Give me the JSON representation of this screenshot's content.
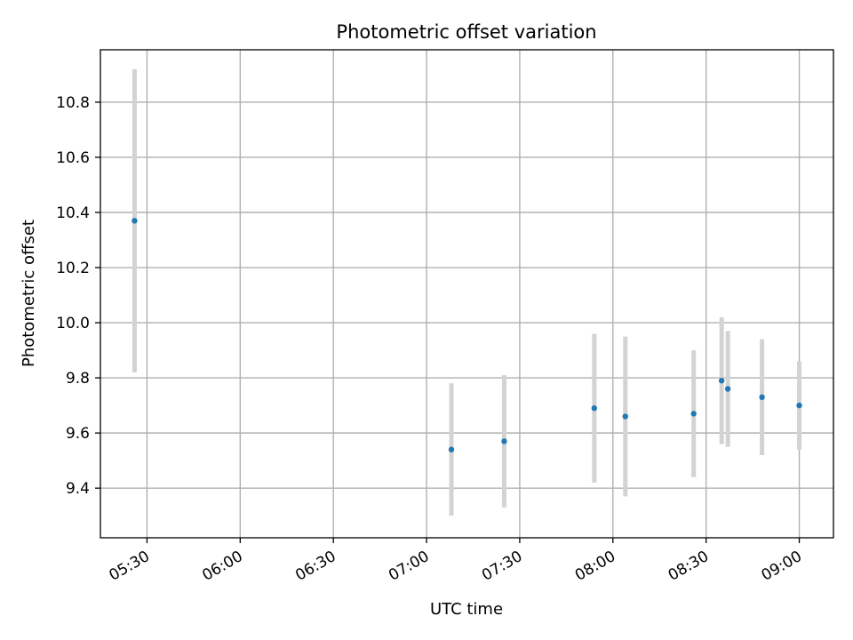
{
  "chart_data": {
    "type": "scatter",
    "title": "Photometric offset variation",
    "xlabel": "UTC time",
    "ylabel": "Photometric offset",
    "xlim": [
      "05:15",
      "09:11"
    ],
    "ylim": [
      9.22,
      10.99
    ],
    "x_ticks": [
      "05:30",
      "06:00",
      "06:30",
      "07:00",
      "07:30",
      "08:00",
      "08:30",
      "09:00"
    ],
    "y_ticks": [
      9.4,
      9.6,
      9.8,
      10.0,
      10.2,
      10.4,
      10.6,
      10.8
    ],
    "grid": true,
    "legend": "none",
    "series": [
      {
        "x": [
          "05:26",
          "07:08",
          "07:25",
          "07:54",
          "08:04",
          "08:26",
          "08:35",
          "08:37",
          "08:48",
          "09:00"
        ],
        "y": [
          10.37,
          9.54,
          9.57,
          9.69,
          9.66,
          9.67,
          9.79,
          9.76,
          9.73,
          9.7
        ],
        "yerr": [
          0.55,
          0.24,
          0.24,
          0.27,
          0.29,
          0.23,
          0.23,
          0.21,
          0.21,
          0.16
        ]
      }
    ],
    "colors": {
      "point": "#1f77b4",
      "errorbar": "#d3d3d3",
      "grid": "#b0b0b0"
    }
  }
}
